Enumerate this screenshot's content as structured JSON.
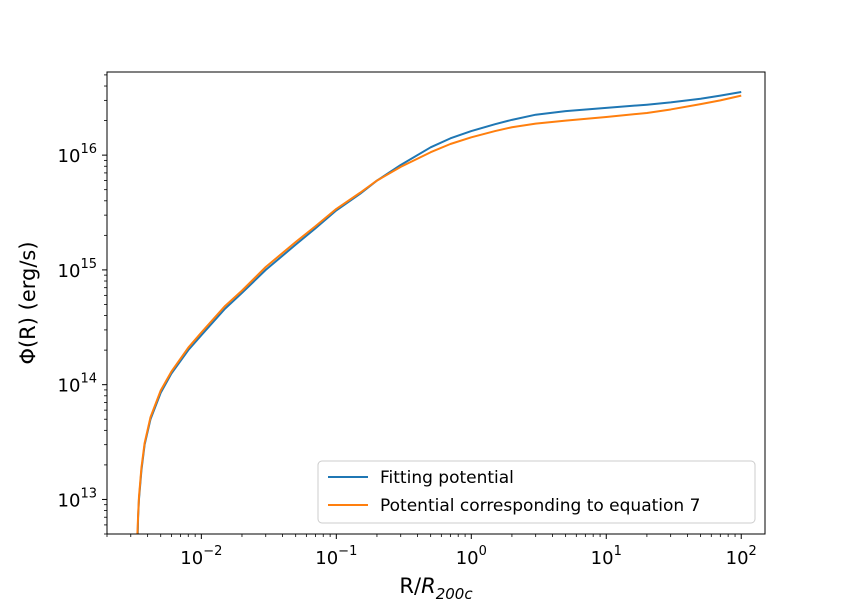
{
  "chart_data": {
    "type": "line",
    "xscale": "log",
    "yscale": "log",
    "xlim": [
      0.002,
      150
    ],
    "ylim": [
      5000000000000.0,
      5.3e+16
    ],
    "xlabel": {
      "main": "R/",
      "italic": "R",
      "sub": "200c"
    },
    "ylabel": "Φ(R) (erg/s)",
    "xticks": [
      {
        "value": 0.01,
        "base": "10",
        "exp": "−2"
      },
      {
        "value": 0.1,
        "base": "10",
        "exp": "−1"
      },
      {
        "value": 1,
        "base": "10",
        "exp": "0"
      },
      {
        "value": 10,
        "base": "10",
        "exp": "1"
      },
      {
        "value": 100,
        "base": "10",
        "exp": "2"
      }
    ],
    "yticks": [
      {
        "value": 10000000000000.0,
        "base": "10",
        "exp": "13"
      },
      {
        "value": 100000000000000.0,
        "base": "10",
        "exp": "14"
      },
      {
        "value": 1000000000000000.0,
        "base": "10",
        "exp": "15"
      },
      {
        "value": 1e+16,
        "base": "10",
        "exp": "16"
      }
    ],
    "legend_position": "lower-right",
    "grid": false,
    "series": [
      {
        "name": "Fitting potential",
        "color": "#1f77b4",
        "points": [
          [
            0.00338,
            5000000000000.0
          ],
          [
            0.0034,
            7000000000000.0
          ],
          [
            0.00345,
            10000000000000.0
          ],
          [
            0.0036,
            18000000000000.0
          ],
          [
            0.0038,
            30000000000000.0
          ],
          [
            0.0042,
            50000000000000.0
          ],
          [
            0.005,
            85000000000000.0
          ],
          [
            0.006,
            125000000000000.0
          ],
          [
            0.008,
            200000000000000.0
          ],
          [
            0.01,
            270000000000000.0
          ],
          [
            0.015,
            460000000000000.0
          ],
          [
            0.02,
            630000000000000.0
          ],
          [
            0.03,
            1000000000000000.0
          ],
          [
            0.05,
            1660000000000000.0
          ],
          [
            0.07,
            2300000000000000.0
          ],
          [
            0.1,
            3300000000000000.0
          ],
          [
            0.15,
            4600000000000000.0
          ],
          [
            0.2,
            6000000000000000.0
          ],
          [
            0.3,
            8200000000000000.0
          ],
          [
            0.5,
            1.17e+16
          ],
          [
            0.7,
            1.4e+16
          ],
          [
            1,
            1.62e+16
          ],
          [
            1.5,
            1.86e+16
          ],
          [
            2,
            2.03e+16
          ],
          [
            3,
            2.25e+16
          ],
          [
            5,
            2.42e+16
          ],
          [
            10,
            2.58e+16
          ],
          [
            20,
            2.75e+16
          ],
          [
            30,
            2.88e+16
          ],
          [
            50,
            3.1e+16
          ],
          [
            70,
            3.3e+16
          ],
          [
            100,
            3.55e+16
          ]
        ]
      },
      {
        "name": "Potential corresponding to equation 7",
        "color": "#ff7f0e",
        "points": [
          [
            0.00336,
            5000000000000.0
          ],
          [
            0.0034,
            7200000000000.0
          ],
          [
            0.00345,
            10500000000000.0
          ],
          [
            0.0036,
            19000000000000.0
          ],
          [
            0.0038,
            31000000000000.0
          ],
          [
            0.0042,
            52000000000000.0
          ],
          [
            0.005,
            89000000000000.0
          ],
          [
            0.006,
            130000000000000.0
          ],
          [
            0.008,
            210000000000000.0
          ],
          [
            0.01,
            285000000000000.0
          ],
          [
            0.015,
            485000000000000.0
          ],
          [
            0.02,
            660000000000000.0
          ],
          [
            0.03,
            1060000000000000.0
          ],
          [
            0.05,
            1750000000000000.0
          ],
          [
            0.07,
            2400000000000000.0
          ],
          [
            0.1,
            3400000000000000.0
          ],
          [
            0.15,
            4700000000000000.0
          ],
          [
            0.2,
            6000000000000000.0
          ],
          [
            0.3,
            7900000000000000.0
          ],
          [
            0.5,
            1.06e+16
          ],
          [
            0.7,
            1.25e+16
          ],
          [
            1,
            1.43e+16
          ],
          [
            1.5,
            1.62e+16
          ],
          [
            2,
            1.75e+16
          ],
          [
            3,
            1.88e+16
          ],
          [
            5,
            2e+16
          ],
          [
            10,
            2.15e+16
          ],
          [
            20,
            2.33e+16
          ],
          [
            30,
            2.5e+16
          ],
          [
            50,
            2.78e+16
          ],
          [
            70,
            3e+16
          ],
          [
            100,
            3.3e+16
          ]
        ]
      }
    ]
  }
}
